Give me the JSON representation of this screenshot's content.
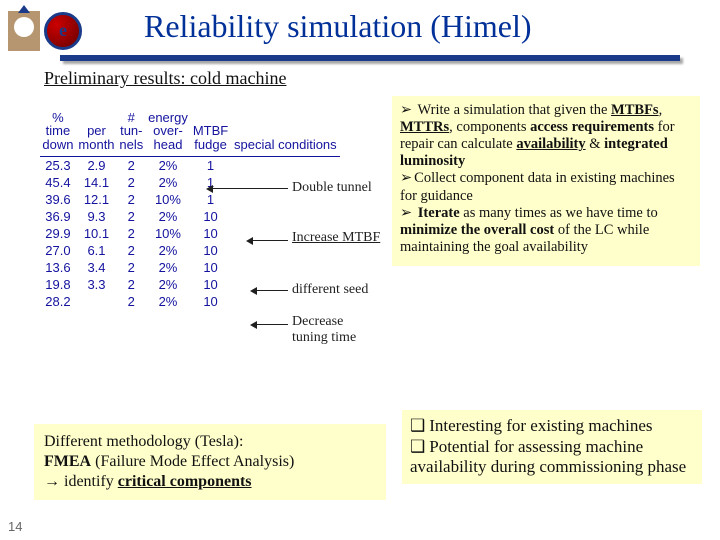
{
  "slide": {
    "title_text": "Reliability simulation (Himel)",
    "subtitle_text": "Preliminary results: cold machine",
    "page_number": "14"
  },
  "colors": {
    "title_color": "#003098",
    "underline_color": "#1a3a8a",
    "table_text": "#14139e",
    "highlight_bg": "#ffffcc"
  },
  "table": {
    "headers": [
      "%\ntime\ndown",
      "\nper\nmonth",
      "#\ntun-\nnels",
      "energy\nover-\nhead",
      "\n\nMTBF\nfudge",
      "\nspecial conditions"
    ],
    "rows": [
      [
        "25.3",
        "2.9",
        "2",
        "2%",
        "1",
        ""
      ],
      [
        "45.4",
        "14.1",
        "2",
        "2%",
        "1",
        ""
      ],
      [
        "39.6",
        "12.1",
        "2",
        "10%",
        "1",
        ""
      ],
      [
        "36.9",
        "9.3",
        "2",
        "2%",
        "10",
        ""
      ],
      [
        "29.9",
        "10.1",
        "2",
        "10%",
        "10",
        ""
      ],
      [
        "27.0",
        "6.1",
        "2",
        "2%",
        "10",
        ""
      ],
      [
        "13.6",
        "3.4",
        "2",
        "2%",
        "10",
        ""
      ],
      [
        "19.8",
        "3.3",
        "2",
        "2%",
        "10",
        ""
      ],
      [
        "28.2",
        "",
        "2",
        "2%",
        "10",
        ""
      ]
    ]
  },
  "annotations": {
    "a1": "Double tunnel",
    "a2": "Increase MTBF",
    "a3": "different seed",
    "a4": "Decrease\ntuning time"
  },
  "bullets": {
    "b1_pre": "Write a simulation that given the ",
    "b1_bold1": "MTBFs",
    "b1_mid1": ", ",
    "b1_bold2": "MTTRs",
    "b1_mid2": ", components ",
    "b1_bold3": "access requirements",
    "b1_mid3": " for repair can calculate ",
    "b1_bold4": "availability",
    "b1_mid4": " & ",
    "b1_bold5": "integrated luminosity",
    "b2": "Collect component data in existing machines for guidance",
    "b3_bold1": "Iterate",
    "b3_mid1": " as many times as we have time to ",
    "b3_bold2": "minimize the overall cost",
    "b3_mid2": " of the LC while maintaining the goal availability"
  },
  "method": {
    "line1_pre": "Different methodology (Tesla):",
    "line2_bold": "FMEA",
    "line2_rest": " (Failure Mode Effect Analysis)",
    "line3_pre": "→ identify ",
    "line3_bold": "critical components"
  },
  "interest": {
    "i1": "Interesting for existing machines",
    "i2": "Potential for assessing machine availability during commissioning phase"
  }
}
